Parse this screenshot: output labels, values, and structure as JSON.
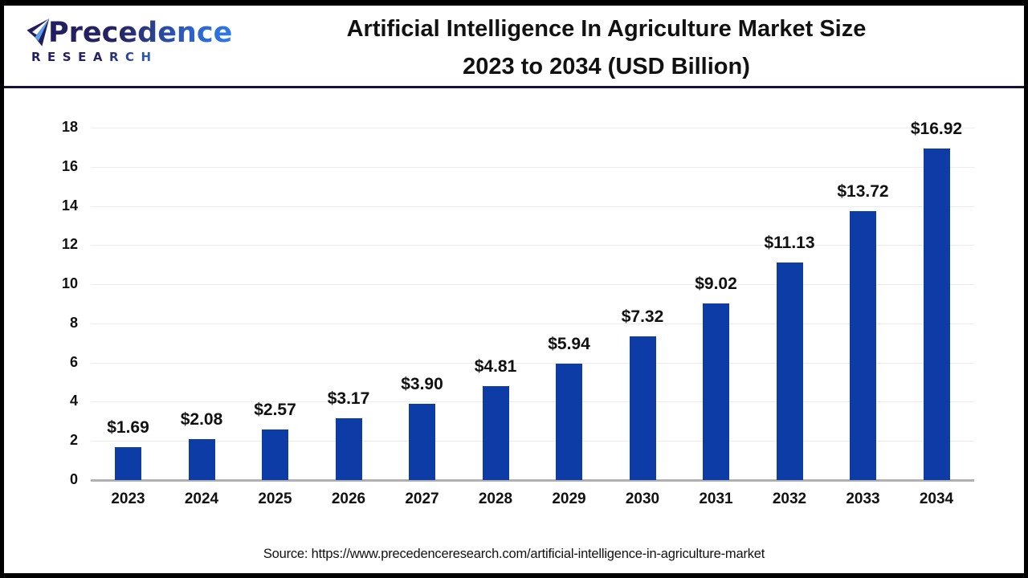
{
  "header": {
    "logo": {
      "name": "Precedence",
      "sub": "RESEARCH"
    },
    "title_line1": "Artificial Intelligence In Agriculture Market Size",
    "title_line2": "2023 to 2034 (USD Billion)"
  },
  "chart_data": {
    "type": "bar",
    "title": "Artificial Intelligence In Agriculture Market Size 2023 to 2034 (USD Billion)",
    "categories": [
      "2023",
      "2024",
      "2025",
      "2026",
      "2027",
      "2028",
      "2029",
      "2030",
      "2031",
      "2032",
      "2033",
      "2034"
    ],
    "values": [
      1.69,
      2.08,
      2.57,
      3.17,
      3.9,
      4.81,
      5.94,
      7.32,
      9.02,
      11.13,
      13.72,
      16.92
    ],
    "value_labels": [
      "$1.69",
      "$2.08",
      "$2.57",
      "$3.17",
      "$3.90",
      "$4.81",
      "$5.94",
      "$7.32",
      "$9.02",
      "$11.13",
      "$13.72",
      "$16.92"
    ],
    "xlabel": "",
    "ylabel": "",
    "ylim": [
      0,
      18
    ],
    "yticks": [
      0,
      2,
      4,
      6,
      8,
      10,
      12,
      14,
      16,
      18
    ],
    "grid": "horizontal",
    "legend": "none",
    "bar_color": "#0d3ca6"
  },
  "footer": {
    "source": "Source: https://www.precedenceresearch.com/artificial-intelligence-in-agriculture-market"
  },
  "colors": {
    "accent": "#0d3ca6",
    "grid": "#ececec",
    "axis_line": "#b0b0b0",
    "header_rule": "#15123a",
    "logo_dark": "#221d63",
    "logo_light": "#2f79e8",
    "text": "#111111",
    "page_border": "#000000"
  }
}
